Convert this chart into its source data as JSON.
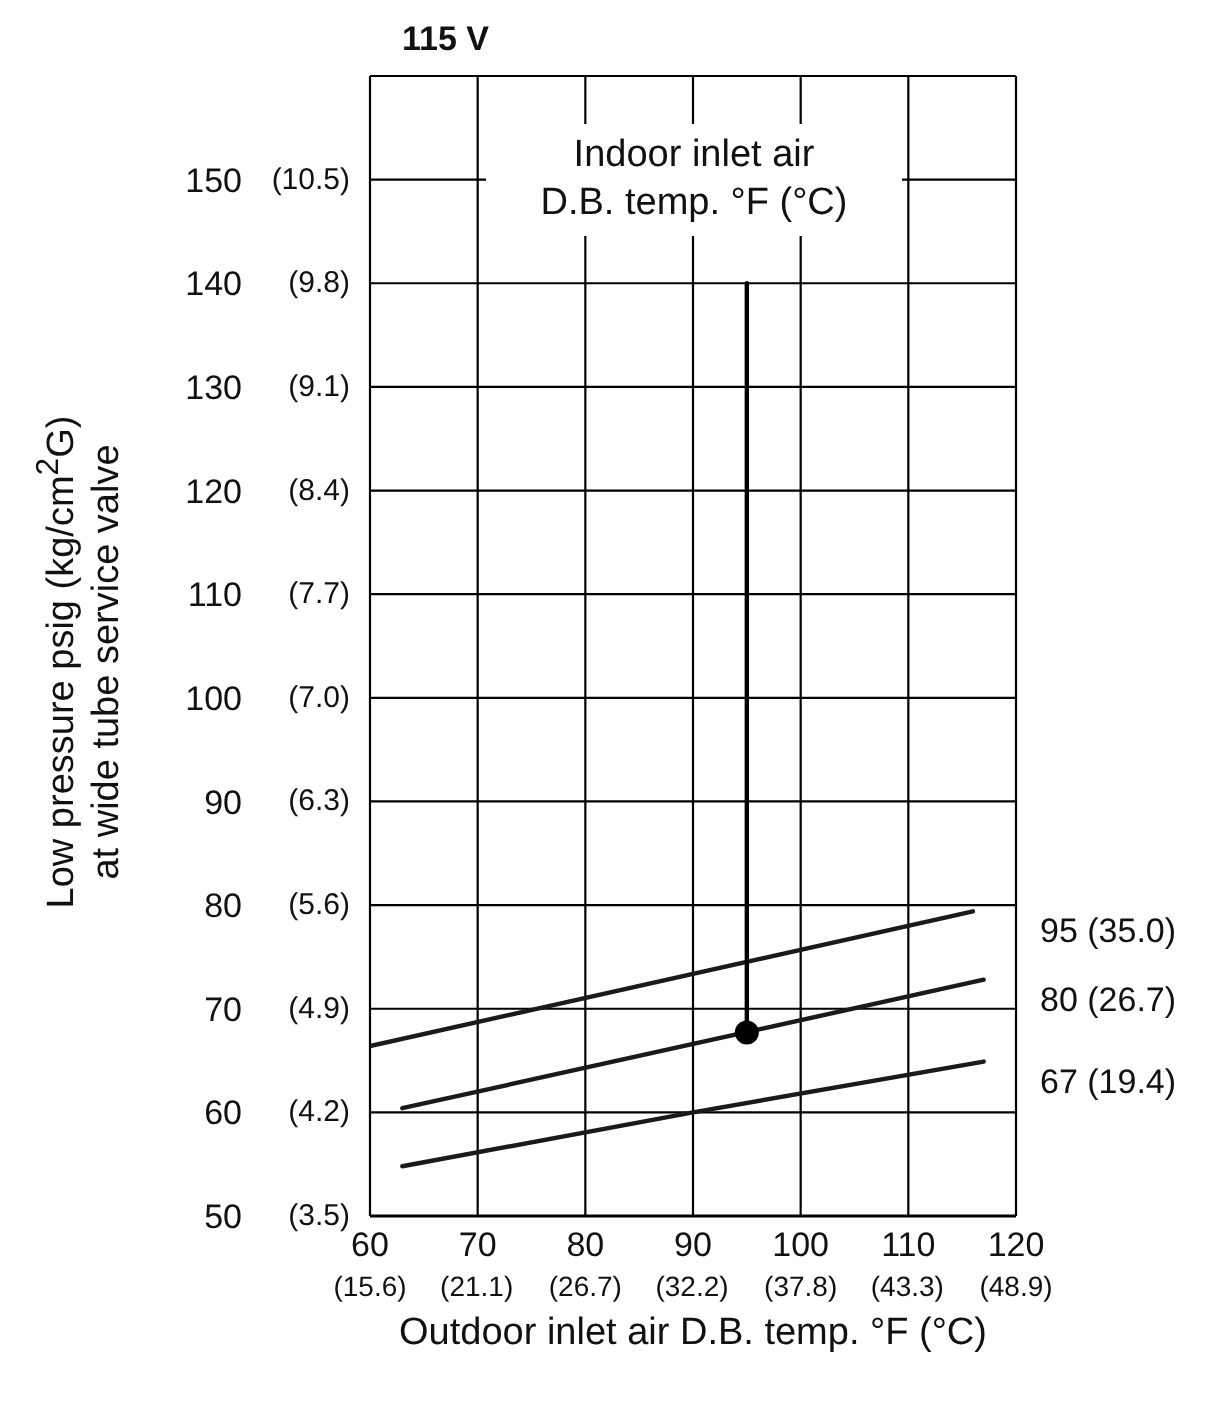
{
  "chart_data": {
    "type": "line",
    "title": "115 V",
    "xlabel": "Outdoor inlet air D.B. temp. °F (°C)",
    "ylabel": "Low pressure psig (kg/cm$^{2}$G)\nat wide tube service valve",
    "annotations": [
      "Indoor inlet air\nD.B. temp. °F (°C)"
    ],
    "xlim": [
      60,
      120
    ],
    "xticks": [
      60,
      70,
      80,
      90,
      100,
      110,
      120
    ],
    "x2lim": [
      15.6,
      48.9
    ],
    "x2ticks": [
      {
        "value": 15.6,
        "label": "(15.6)"
      },
      {
        "value": 21.1,
        "label": "(21.1)"
      },
      {
        "value": 26.7,
        "label": "(26.7)"
      },
      {
        "value": 32.2,
        "label": "(32.2)"
      },
      {
        "value": 37.8,
        "label": "(37.8)"
      },
      {
        "value": 43.3,
        "label": "(43.3)"
      },
      {
        "value": 48.9,
        "label": "(48.9)"
      }
    ],
    "ylim": [
      50,
      160
    ],
    "yticks": [
      50,
      60,
      70,
      80,
      90,
      100,
      110,
      120,
      130,
      140,
      150
    ],
    "y2lim": [
      3.5,
      11.2
    ],
    "y2ticks": [
      {
        "value": 3.5,
        "label": "(3.5)"
      },
      {
        "value": 4.2,
        "label": "(4.2)"
      },
      {
        "value": 4.9,
        "label": "(4.9)"
      },
      {
        "value": 5.6,
        "label": "(5.6)"
      },
      {
        "value": 6.3,
        "label": "(6.3)"
      },
      {
        "value": 7.0,
        "label": "(7.0)"
      },
      {
        "value": 7.7,
        "label": "(7.7)"
      },
      {
        "value": 8.4,
        "label": "(8.4)"
      },
      {
        "value": 9.1,
        "label": "(9.1)"
      },
      {
        "value": 9.8,
        "label": "(9.8)"
      },
      {
        "value": 10.5,
        "label": "(10.5)"
      }
    ],
    "grid": true,
    "line_style": "solid",
    "series": [
      {
        "name": "95 (35.0)",
        "marker": "none",
        "color": "#1a1a1a",
        "x": [
          60,
          116
        ],
        "values": [
          66.4,
          79.4
        ]
      },
      {
        "name": "80 (26.7)",
        "marker": "none",
        "color": "#1a1a1a",
        "x": [
          63,
          117
        ],
        "values": [
          60.4,
          72.8
        ]
      },
      {
        "name": "67 (19.4)",
        "marker": "none",
        "color": "#1a1a1a",
        "x": [
          63,
          90,
          117
        ],
        "values": [
          54.8,
          60,
          64.9
        ]
      },
      {
        "marker": "none",
        "color": "#000000",
        "x": [
          95,
          95
        ],
        "values": [
          67.7,
          140
        ]
      },
      {
        "type": "scatter",
        "marker": "circle",
        "color": "#000000",
        "x": [
          95
        ],
        "values": [
          67.7
        ]
      }
    ]
  }
}
